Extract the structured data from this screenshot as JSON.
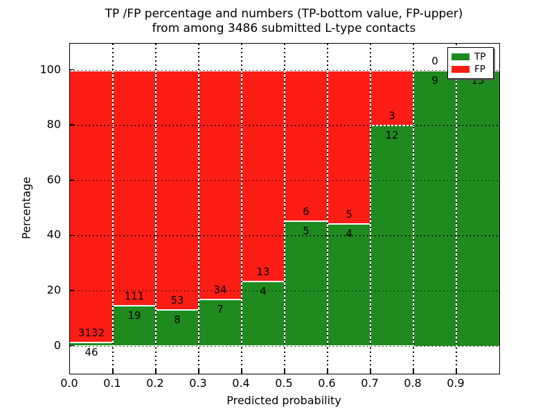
{
  "figure": {
    "title_line1": "TP /FP percentage and numbers (TP-bottom value, FP-upper)",
    "title_line2": "from among 3486 submitted L-type contacts",
    "xlabel": "Predicted probability",
    "ylabel": "Percentage"
  },
  "legend": {
    "position": "upper right",
    "items": [
      {
        "label": "TP",
        "color": "#1f8b1f"
      },
      {
        "label": "FP",
        "color": "#fc1d15"
      }
    ]
  },
  "colors": {
    "tp": "#1f8b1f",
    "fp": "#fc1d15",
    "bar_edge": "#ffffff",
    "grid": "#000000",
    "background": "#ffffff"
  },
  "chart_data": {
    "type": "bar",
    "stacked": true,
    "normalized_to_percent": true,
    "title": "TP /FP percentage and numbers (TP-bottom value, FP-upper) from among 3486 submitted L-type contacts",
    "xlabel": "Predicted probability",
    "ylabel": "Percentage",
    "total_contacts": 3486,
    "bin_width": 0.1,
    "bin_starts": [
      0.0,
      0.1,
      0.2,
      0.3,
      0.4,
      0.5,
      0.6,
      0.7,
      0.8,
      0.9
    ],
    "x_tick_labels": [
      "0.0",
      "0.1",
      "0.2",
      "0.3",
      "0.4",
      "0.5",
      "0.6",
      "0.7",
      "0.8",
      "0.9"
    ],
    "y_ticks": [
      0,
      20,
      40,
      60,
      80,
      100
    ],
    "xlim": [
      0.0,
      1.0
    ],
    "ylim": [
      -10,
      109.5
    ],
    "grid": true,
    "legend_position": "upper right",
    "series": [
      {
        "name": "TP",
        "role": "bottom",
        "values": [
          46,
          19,
          8,
          7,
          4,
          5,
          4,
          12,
          9,
          15
        ]
      },
      {
        "name": "FP",
        "role": "upper",
        "values": [
          3132,
          111,
          53,
          34,
          13,
          6,
          5,
          3,
          0,
          0
        ]
      }
    ],
    "tp_percent_by_bin": [
      1.45,
      14.62,
      13.11,
      17.07,
      23.53,
      45.45,
      44.44,
      80.0,
      100.0,
      100.0
    ]
  }
}
